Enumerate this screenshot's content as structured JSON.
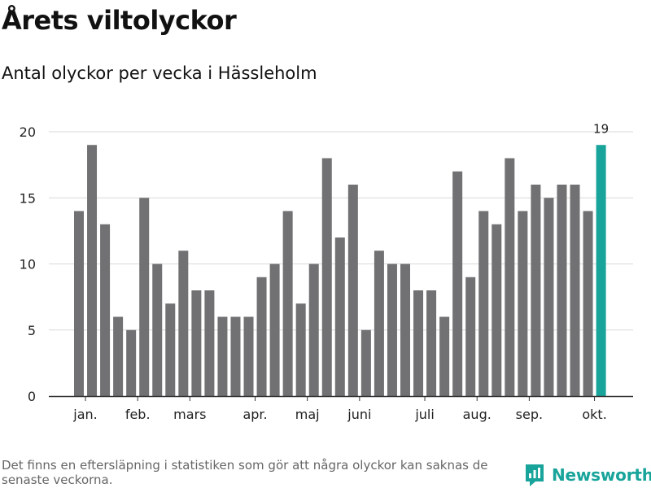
{
  "header": {
    "title": "Årets viltolyckor",
    "subtitle": "Antal olyckor per vecka i Hässleholm"
  },
  "footer": {
    "note": "Det finns en eftersläpning i statistiken som gör att några olyckor kan saknas de senaste veckorna.",
    "brand": "Newsworthy",
    "brand_icon": "bar-chart-chat-icon"
  },
  "colors": {
    "bar": "#717072",
    "highlight": "#18a49a",
    "grid": "#d9d9d9",
    "axis": "#333333",
    "text": "#222222"
  },
  "chart_data": {
    "type": "bar",
    "title": "Årets viltolyckor",
    "subtitle": "Antal olyckor per vecka i Hässleholm",
    "xlabel": "",
    "ylabel": "",
    "ylim": [
      0,
      20
    ],
    "yticks": [
      0,
      5,
      10,
      15,
      20
    ],
    "grid": true,
    "values": [
      14,
      19,
      13,
      6,
      5,
      15,
      10,
      7,
      11,
      8,
      8,
      6,
      6,
      6,
      9,
      10,
      14,
      7,
      10,
      18,
      12,
      16,
      5,
      11,
      10,
      10,
      8,
      8,
      6,
      17,
      9,
      14,
      13,
      18,
      14,
      16,
      15,
      16,
      16,
      14,
      19
    ],
    "highlight_index": 40,
    "highlight_label": "19",
    "month_labels": [
      {
        "label": "jan.",
        "bar": 0.5
      },
      {
        "label": "feb.",
        "bar": 4.5
      },
      {
        "label": "mars",
        "bar": 8.5
      },
      {
        "label": "apr.",
        "bar": 13.5
      },
      {
        "label": "maj",
        "bar": 17.5
      },
      {
        "label": "juni",
        "bar": 21.5
      },
      {
        "label": "juli",
        "bar": 26.5
      },
      {
        "label": "aug.",
        "bar": 30.5
      },
      {
        "label": "sep.",
        "bar": 34.5
      },
      {
        "label": "okt.",
        "bar": 39.5
      }
    ]
  }
}
